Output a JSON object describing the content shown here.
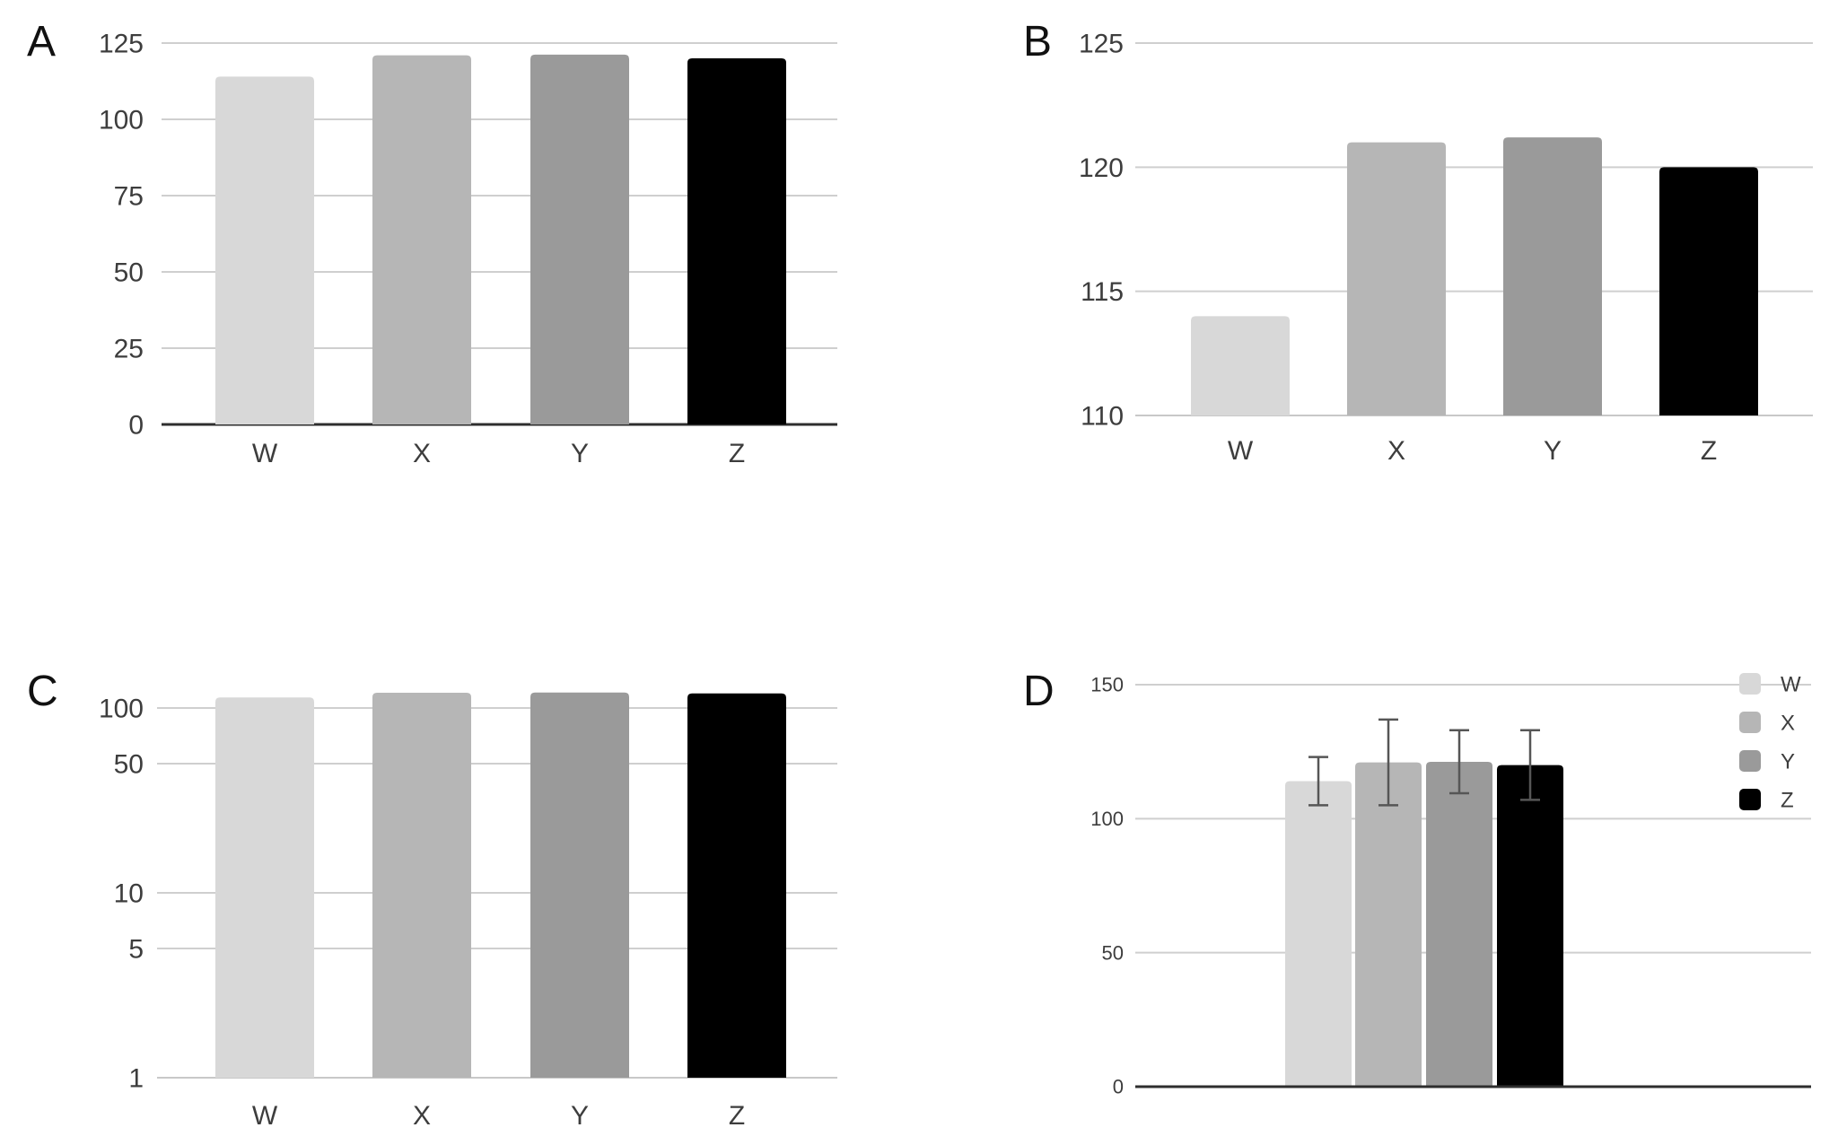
{
  "figure": {
    "background": "#ffffff",
    "panel_letters": [
      "A",
      "B",
      "C",
      "D"
    ]
  },
  "colors": {
    "W": "#d8d8d8",
    "X": "#b6b6b6",
    "Y": "#9a9a9a",
    "Z": "#000000",
    "gridline": "#cfcfcf",
    "axis_dark": "#2e2e2e",
    "axis_light": "#c8c8c8",
    "error_bar": "#565656",
    "label_text": "#3d3d3d",
    "panel_letter": "#111111"
  },
  "chart_data": [
    {
      "panel": "A",
      "type": "bar",
      "scale": "linear",
      "categories": [
        "W",
        "X",
        "Y",
        "Z"
      ],
      "values": [
        114,
        121,
        121.2,
        120
      ],
      "ylim": [
        0,
        125
      ],
      "yticks": [
        0,
        25,
        50,
        75,
        100,
        125
      ],
      "grid": true,
      "x_axis_labels_shown": true,
      "dark_baseline": true,
      "legend": null
    },
    {
      "panel": "B",
      "type": "bar",
      "scale": "linear",
      "categories": [
        "W",
        "X",
        "Y",
        "Z"
      ],
      "values": [
        114,
        121,
        121.2,
        120
      ],
      "ylim": [
        110,
        125
      ],
      "yticks": [
        110,
        115,
        120,
        125
      ],
      "grid": true,
      "x_axis_labels_shown": true,
      "dark_baseline": false,
      "legend": null
    },
    {
      "panel": "C",
      "type": "bar",
      "scale": "log",
      "categories": [
        "W",
        "X",
        "Y",
        "Z"
      ],
      "values": [
        114,
        121,
        121.2,
        120
      ],
      "ylim": [
        1,
        125
      ],
      "yticks": [
        1,
        5,
        10,
        50,
        100
      ],
      "grid": true,
      "x_axis_labels_shown": true,
      "dark_baseline": false,
      "legend": null
    },
    {
      "panel": "D",
      "type": "bar",
      "scale": "linear",
      "categories": [
        "W",
        "X",
        "Y",
        "Z"
      ],
      "values": [
        114,
        121,
        121.2,
        120
      ],
      "errors_low": [
        105,
        105,
        109.5,
        107
      ],
      "errors_high": [
        123,
        137,
        133,
        133
      ],
      "ylim": [
        0,
        150
      ],
      "yticks": [
        0,
        50,
        100,
        150
      ],
      "grid": true,
      "x_axis_labels_shown": false,
      "dark_baseline": true,
      "legend": {
        "entries": [
          "W",
          "X",
          "Y",
          "Z"
        ],
        "position": "right"
      }
    }
  ]
}
